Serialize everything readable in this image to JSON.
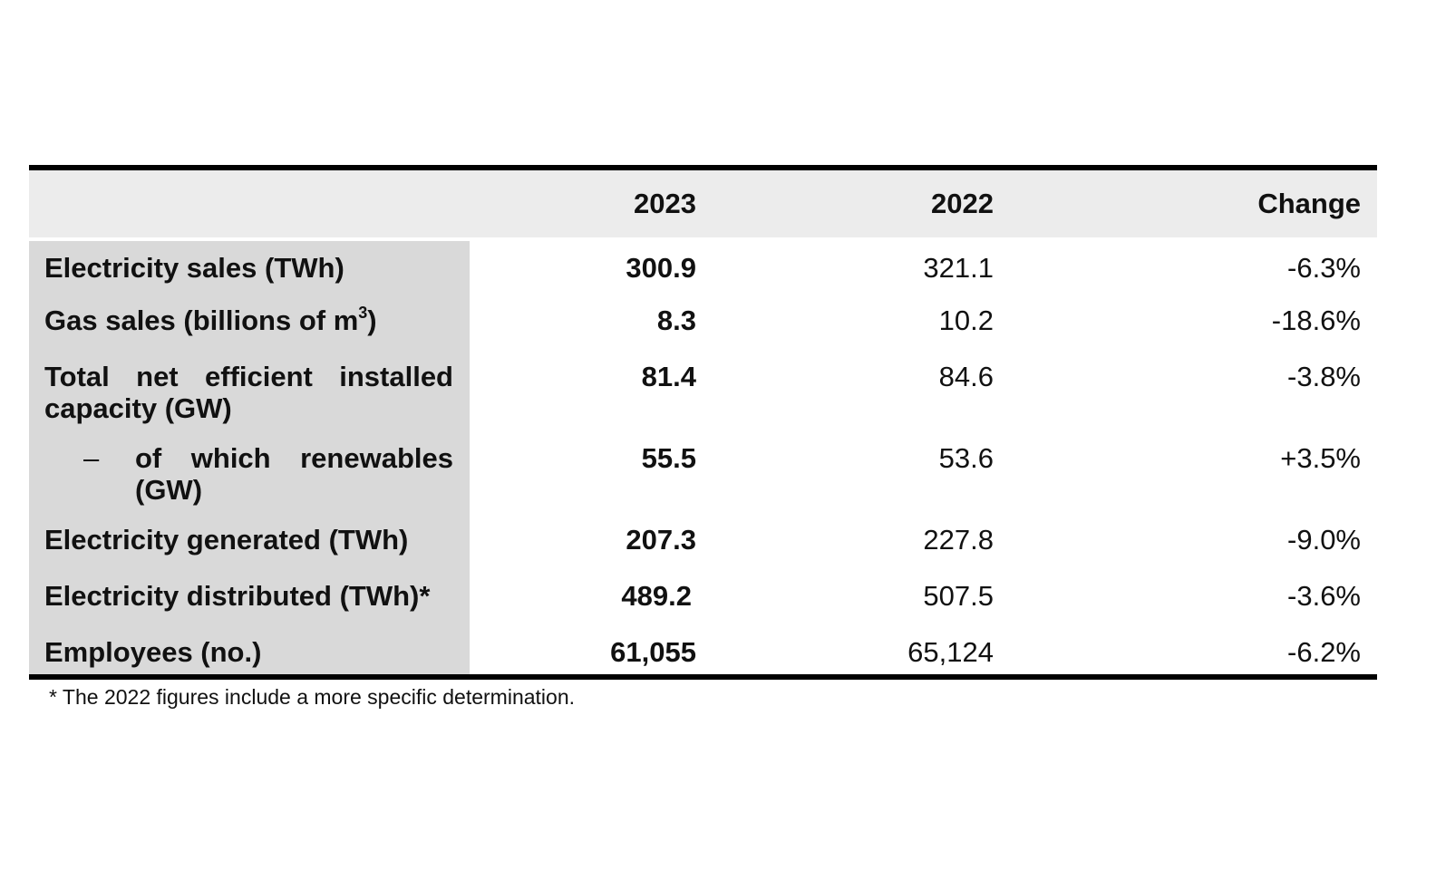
{
  "table": {
    "headers": {
      "label": "",
      "col_2023": "2023",
      "col_2022": "2022",
      "col_change": "Change"
    },
    "rows": [
      {
        "label": "Electricity sales (TWh)",
        "v2023": "300.9",
        "v2022": "321.1",
        "change": "-6.3%"
      },
      {
        "label_prefix": "Gas sales (billions of m",
        "label_sup": "3",
        "label_suffix": ")",
        "v2023": "8.3",
        "v2022": "10.2",
        "change": "-18.6%"
      },
      {
        "label": "Total net efficient installed capacity (GW)",
        "v2023": "81.4",
        "v2022": "84.6",
        "change": "-3.8%"
      },
      {
        "dash": "–",
        "label": "of which renewables (GW)",
        "v2023": "55.5",
        "v2022": "53.6",
        "change": "+3.5%"
      },
      {
        "label": "Electricity generated (TWh)",
        "v2023": "207.3",
        "v2022": "227.8",
        "change": "-9.0%"
      },
      {
        "label": "Electricity distributed (TWh)*",
        "v2023": "489.2",
        "v2022": "507.5",
        "change": "-3.6%"
      },
      {
        "label": "Employees (no.)",
        "v2023": "61,055",
        "v2022": "65,124",
        "change": "-6.2%"
      }
    ],
    "footnote": "* The 2022 figures include a more specific determination."
  }
}
